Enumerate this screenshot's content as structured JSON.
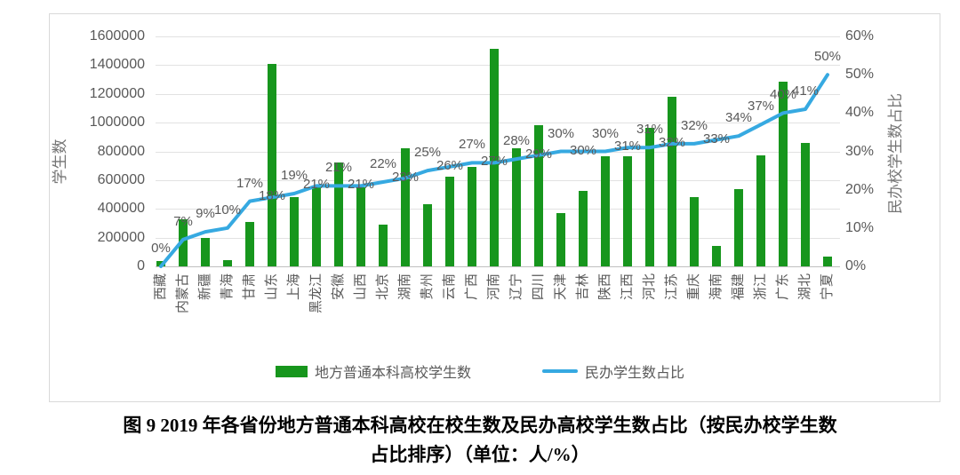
{
  "chart_data": {
    "type": "bar+line combo",
    "title": "",
    "categories": [
      "西藏",
      "内蒙古",
      "新疆",
      "青海",
      "甘肃",
      "山东",
      "上海",
      "黑龙江",
      "安徽",
      "山西",
      "北京",
      "湖南",
      "贵州",
      "云南",
      "广西",
      "河南",
      "辽宁",
      "四川",
      "天津",
      "吉林",
      "陕西",
      "江西",
      "河北",
      "江苏",
      "重庆",
      "海南",
      "福建",
      "浙江",
      "广东",
      "湖北",
      "宁夏"
    ],
    "series": [
      {
        "name": "地方普通本科高校学生数",
        "type": "bar",
        "color": "#17961d",
        "values": [
          35000,
          325000,
          200000,
          45000,
          310000,
          1410000,
          480000,
          550000,
          720000,
          550000,
          290000,
          820000,
          430000,
          625000,
          695000,
          1515000,
          820000,
          980000,
          370000,
          525000,
          765000,
          765000,
          965000,
          1180000,
          480000,
          145000,
          540000,
          775000,
          1285000,
          860000,
          70000
        ]
      },
      {
        "name": "民办学生数占比",
        "type": "line",
        "color": "#36a9e1",
        "values": [
          0,
          7,
          9,
          10,
          17,
          18,
          19,
          21,
          21,
          21,
          22,
          23,
          25,
          26,
          27,
          27,
          28,
          29,
          30,
          30,
          30,
          31,
          31,
          32,
          32,
          33,
          34,
          37,
          40,
          41,
          50
        ],
        "labels": [
          "0%",
          "7%",
          "9%",
          "10%",
          "17%",
          "18%",
          "19%",
          "21%",
          "21%",
          "21%",
          "22%",
          "23%",
          "25%",
          "26%",
          "27%",
          "27%",
          "28%",
          "29%",
          "30%",
          "30%",
          "30%",
          "31%",
          "31%",
          "32%",
          "32%",
          "33%",
          "34%",
          "37%",
          "40%",
          "41%",
          "50%"
        ]
      }
    ],
    "left_axis": {
      "label": "学生数",
      "min": 0,
      "max": 1600000,
      "ticks": [
        "1600000",
        "1400000",
        "1200000",
        "1000000",
        "800000",
        "600000",
        "400000",
        "200000",
        "0"
      ]
    },
    "right_axis": {
      "label": "民办校学生数占比",
      "min": 0,
      "max": 60,
      "ticks": [
        "60%",
        "50%",
        "40%",
        "30%",
        "20%",
        "10%",
        "0%"
      ]
    },
    "legend": [
      "地方普通本科高校学生数",
      "民办学生数占比"
    ],
    "grid": "horizontal",
    "legend_position": "bottom"
  },
  "caption": {
    "line1": "图 9  2019 年各省份地方普通本科高校在校生数及民办高校学生数占比（按民办校学生数",
    "line2": "占比排序）（单位：人/%）"
  },
  "colors": {
    "bar_green": "#17961d",
    "line_blue": "#36a9e1",
    "text_gray": "#595959",
    "gridline": "#e2e2e2",
    "axis_line": "#bfbfbf",
    "frame_border": "#d9d9d9",
    "caption_black": "#000000"
  }
}
